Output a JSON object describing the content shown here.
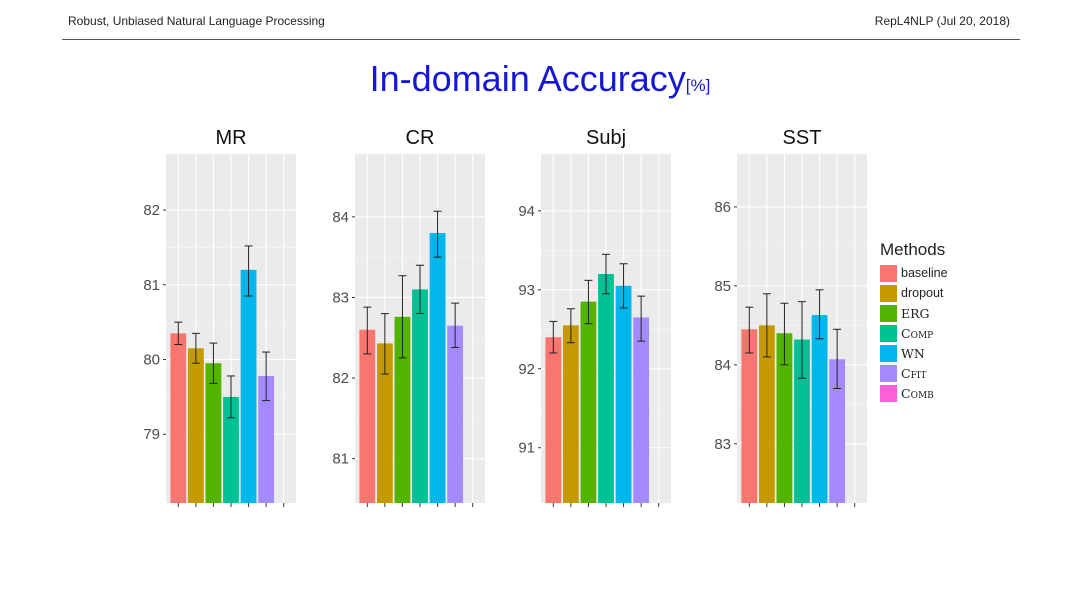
{
  "header": {
    "left": "Robust, Unbiased Natural Language Processing",
    "right": "RepL4NLP (Jul 20, 2018)"
  },
  "title": {
    "main": "In-domain Accuracy",
    "unit": "[%]"
  },
  "legend": {
    "title": "Methods",
    "items": [
      {
        "label": "baseline",
        "color": "#F8766D"
      },
      {
        "label": "dropout",
        "color": "#C49A00"
      },
      {
        "label": "ERG",
        "color": "#53B400"
      },
      {
        "label": "COMP",
        "color": "#00C094"
      },
      {
        "label": "WN",
        "color": "#00B6EB"
      },
      {
        "label": "CFIT",
        "color": "#A58AFF"
      },
      {
        "label": "COMB",
        "color": "#FB61D7"
      }
    ]
  },
  "chart_data": [
    {
      "type": "bar",
      "title": "MR",
      "categories": [
        "baseline",
        "dropout",
        "ERG",
        "COMP",
        "WN",
        "CFIT",
        "COMB"
      ],
      "values": [
        80.35,
        80.15,
        79.95,
        79.5,
        81.2,
        79.78,
        null
      ],
      "error_low": [
        80.2,
        79.95,
        79.68,
        79.22,
        80.85,
        79.45,
        null
      ],
      "error_high": [
        80.5,
        80.35,
        80.22,
        79.78,
        81.52,
        80.1,
        null
      ],
      "ylim": [
        78.08,
        82.75
      ],
      "yticks": [
        79,
        80,
        81,
        82
      ]
    },
    {
      "type": "bar",
      "title": "CR",
      "categories": [
        "baseline",
        "dropout",
        "ERG",
        "COMP",
        "WN",
        "CFIT",
        "COMB"
      ],
      "values": [
        82.6,
        82.43,
        82.76,
        83.1,
        83.8,
        82.65,
        null
      ],
      "error_low": [
        82.3,
        82.05,
        82.25,
        82.8,
        83.5,
        82.38,
        null
      ],
      "error_high": [
        82.88,
        82.8,
        83.27,
        83.4,
        84.07,
        82.93,
        null
      ],
      "ylim": [
        80.45,
        84.78
      ],
      "yticks": [
        81,
        82,
        83,
        84
      ]
    },
    {
      "type": "bar",
      "title": "Subj",
      "categories": [
        "baseline",
        "dropout",
        "ERG",
        "COMP",
        "WN",
        "CFIT",
        "COMB"
      ],
      "values": [
        92.4,
        92.55,
        92.85,
        93.2,
        93.05,
        92.65,
        null
      ],
      "error_low": [
        92.2,
        92.33,
        92.57,
        92.95,
        92.77,
        92.35,
        null
      ],
      "error_high": [
        92.6,
        92.76,
        93.12,
        93.45,
        93.33,
        92.92,
        null
      ],
      "ylim": [
        90.3,
        94.72
      ],
      "yticks": [
        91,
        92,
        93,
        94
      ]
    },
    {
      "type": "bar",
      "title": "SST",
      "categories": [
        "baseline",
        "dropout",
        "ERG",
        "COMP",
        "WN",
        "CFIT",
        "COMB"
      ],
      "values": [
        84.45,
        84.5,
        84.4,
        84.32,
        84.63,
        84.07,
        null
      ],
      "error_low": [
        84.15,
        84.1,
        84.0,
        83.83,
        84.33,
        83.7,
        null
      ],
      "error_high": [
        84.73,
        84.9,
        84.78,
        84.8,
        84.95,
        84.45,
        null
      ],
      "ylim": [
        82.25,
        86.67
      ],
      "yticks": [
        83,
        84,
        85,
        86
      ]
    }
  ]
}
